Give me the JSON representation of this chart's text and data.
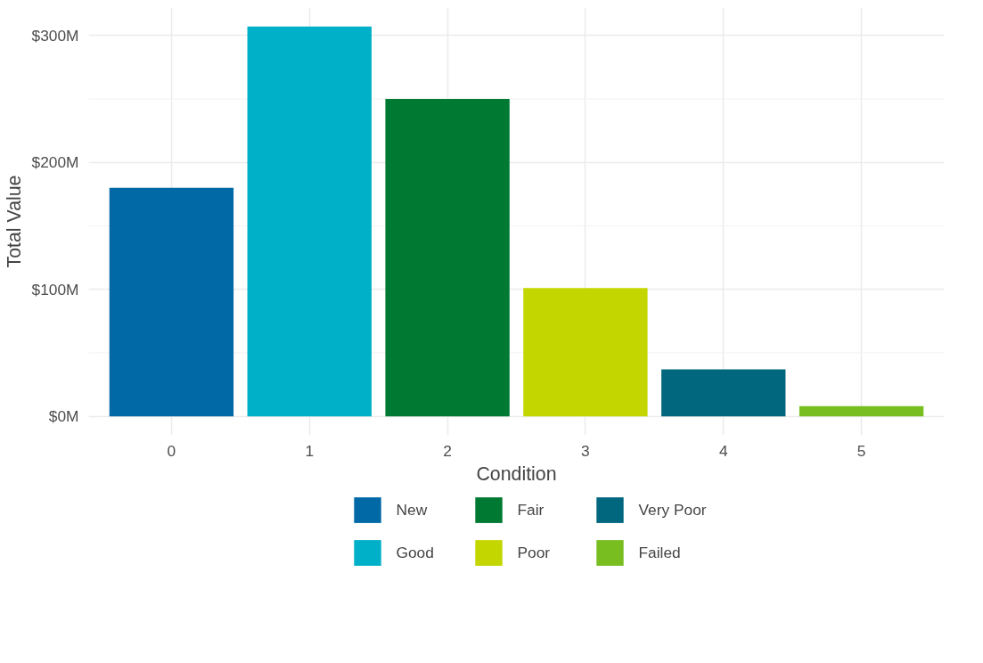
{
  "chart_data": {
    "type": "bar",
    "xlabel": "Condition",
    "ylabel": "Total Value",
    "categories": [
      "0",
      "1",
      "2",
      "3",
      "4",
      "5"
    ],
    "series": [
      {
        "name": "New",
        "color": "#0069a6",
        "values": [
          180,
          null,
          null,
          null,
          null,
          null
        ]
      },
      {
        "name": "Good",
        "color": "#00afc8",
        "values": [
          null,
          307,
          null,
          null,
          null,
          null
        ]
      },
      {
        "name": "Fair",
        "color": "#007a33",
        "values": [
          null,
          null,
          250,
          null,
          null,
          null
        ]
      },
      {
        "name": "Poor",
        "color": "#c4d600",
        "values": [
          null,
          null,
          null,
          101,
          null,
          null
        ]
      },
      {
        "name": "Very Poor",
        "color": "#00677f",
        "values": [
          null,
          null,
          null,
          null,
          37,
          null
        ]
      },
      {
        "name": "Failed",
        "color": "#78be20",
        "values": [
          null,
          null,
          null,
          null,
          null,
          8
        ]
      }
    ],
    "ylim": [
      -15,
      322
    ],
    "yticks": [
      {
        "value": 0,
        "label": "$0M"
      },
      {
        "value": 100,
        "label": "$100M"
      },
      {
        "value": 200,
        "label": "$200M"
      },
      {
        "value": 300,
        "label": "$300M"
      }
    ],
    "grid": true,
    "legend": "bottom"
  }
}
